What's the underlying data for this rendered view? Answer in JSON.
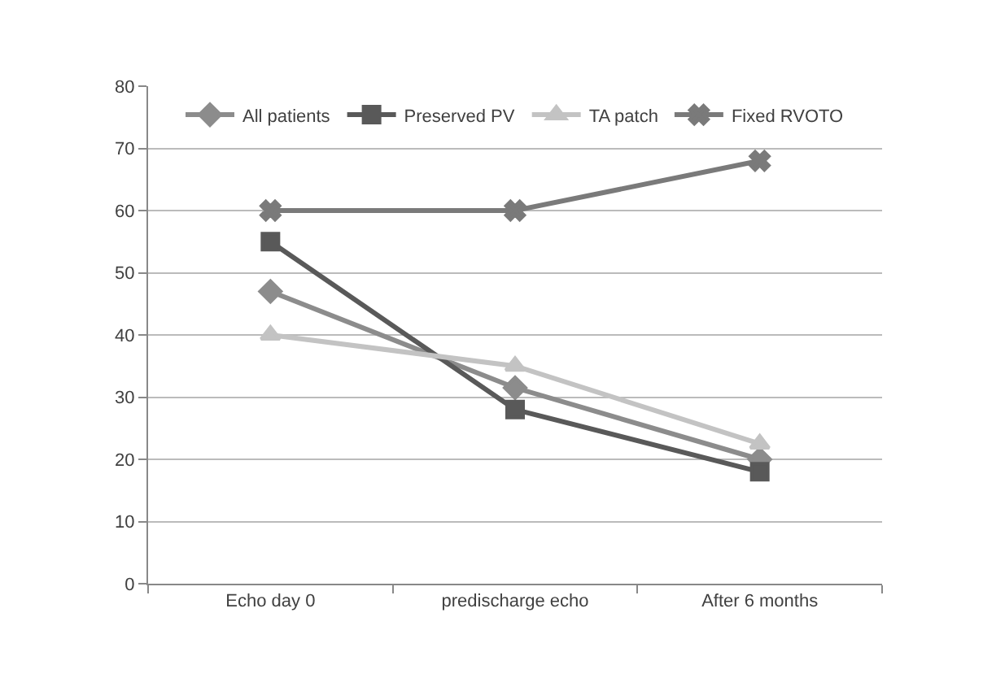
{
  "chart_data": {
    "type": "line",
    "categories": [
      "Echo day 0",
      "predischarge echo",
      "After 6 months"
    ],
    "series": [
      {
        "name": "All patients",
        "color": "#8c8c8c",
        "marker": "diamond",
        "values": [
          47,
          31.5,
          20
        ]
      },
      {
        "name": "Preserved PV",
        "color": "#595959",
        "marker": "square",
        "values": [
          55,
          28,
          18
        ]
      },
      {
        "name": "TA patch",
        "color": "#c3c3c3",
        "marker": "triangle",
        "values": [
          40,
          35,
          22.5
        ]
      },
      {
        "name": "Fixed RVOTO",
        "color": "#7a7a7a",
        "marker": "cross",
        "values": [
          60,
          60,
          68
        ]
      }
    ],
    "ylim": [
      0,
      80
    ],
    "yticks": [
      0,
      10,
      20,
      30,
      40,
      50,
      60,
      70,
      80
    ],
    "grid": "y",
    "legend": "top",
    "line_style": "solid"
  }
}
